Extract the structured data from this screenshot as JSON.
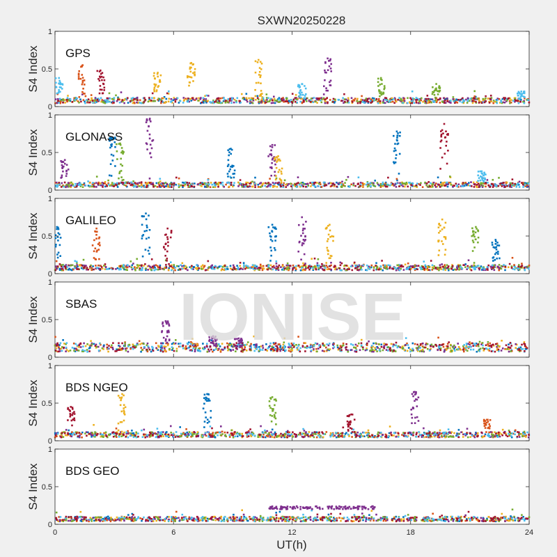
{
  "figure": {
    "title": "SXWN20250228",
    "xlabel": "UT(h)",
    "ylabel": "S4 Index",
    "watermark": "IONISE",
    "background": "#f0f0f0",
    "axes_background": "#ffffff"
  },
  "chart_data": {
    "type": "scatter",
    "title": "SXWN20250228",
    "xlabel": "UT(h)",
    "ylabel": "S4 Index",
    "xlim": [
      0,
      24
    ],
    "ylim": [
      0,
      1
    ],
    "xticks": [
      "0",
      "6",
      "12",
      "18",
      "24"
    ],
    "yticks": [
      "0",
      "0.5",
      "1"
    ],
    "grid": false,
    "series_colors": [
      "#0072BD",
      "#D95319",
      "#EDB120",
      "#7E2F8E",
      "#77AC30",
      "#4DBEEE",
      "#A2142F"
    ],
    "panels": [
      {
        "name": "GPS",
        "baseline": 0.08,
        "peaks": [
          {
            "x": 0.2,
            "y": 0.38,
            "c": 5
          },
          {
            "x": 1.4,
            "y": 0.55,
            "c": 1
          },
          {
            "x": 2.3,
            "y": 0.48,
            "c": 6
          },
          {
            "x": 5.2,
            "y": 0.45,
            "c": 2
          },
          {
            "x": 6.9,
            "y": 0.58,
            "c": 2
          },
          {
            "x": 10.3,
            "y": 0.62,
            "c": 2
          },
          {
            "x": 12.5,
            "y": 0.3,
            "c": 5
          },
          {
            "x": 13.8,
            "y": 0.64,
            "c": 3
          },
          {
            "x": 16.5,
            "y": 0.38,
            "c": 4
          },
          {
            "x": 19.3,
            "y": 0.3,
            "c": 4
          },
          {
            "x": 23.6,
            "y": 0.2,
            "c": 5
          }
        ]
      },
      {
        "name": "GLONASS",
        "baseline": 0.07,
        "peaks": [
          {
            "x": 0.5,
            "y": 0.4,
            "c": 3
          },
          {
            "x": 2.9,
            "y": 0.7,
            "c": 0
          },
          {
            "x": 3.3,
            "y": 0.62,
            "c": 4
          },
          {
            "x": 4.8,
            "y": 0.95,
            "c": 3
          },
          {
            "x": 8.9,
            "y": 0.55,
            "c": 0
          },
          {
            "x": 11.0,
            "y": 0.6,
            "c": 3
          },
          {
            "x": 11.3,
            "y": 0.45,
            "c": 2
          },
          {
            "x": 17.3,
            "y": 0.78,
            "c": 0
          },
          {
            "x": 19.7,
            "y": 0.88,
            "c": 6
          },
          {
            "x": 21.6,
            "y": 0.25,
            "c": 5
          }
        ]
      },
      {
        "name": "GALILEO",
        "baseline": 0.08,
        "peaks": [
          {
            "x": 0.1,
            "y": 0.62,
            "c": 0
          },
          {
            "x": 2.1,
            "y": 0.6,
            "c": 1
          },
          {
            "x": 4.6,
            "y": 0.8,
            "c": 0
          },
          {
            "x": 5.7,
            "y": 0.6,
            "c": 6
          },
          {
            "x": 11.0,
            "y": 0.65,
            "c": 0
          },
          {
            "x": 12.5,
            "y": 0.75,
            "c": 3
          },
          {
            "x": 13.9,
            "y": 0.65,
            "c": 2
          },
          {
            "x": 19.6,
            "y": 0.72,
            "c": 2
          },
          {
            "x": 21.3,
            "y": 0.62,
            "c": 4
          },
          {
            "x": 22.3,
            "y": 0.45,
            "c": 0
          }
        ]
      },
      {
        "name": "SBAS",
        "baseline": 0.13,
        "peaks": [
          {
            "x": 5.6,
            "y": 0.48,
            "c": 3
          },
          {
            "x": 8.0,
            "y": 0.28,
            "c": 3
          },
          {
            "x": 9.3,
            "y": 0.25,
            "c": 3
          }
        ]
      },
      {
        "name": "BDS NGEO",
        "baseline": 0.08,
        "peaks": [
          {
            "x": 0.8,
            "y": 0.45,
            "c": 6
          },
          {
            "x": 3.4,
            "y": 0.62,
            "c": 2
          },
          {
            "x": 7.7,
            "y": 0.62,
            "c": 0
          },
          {
            "x": 11.0,
            "y": 0.58,
            "c": 4
          },
          {
            "x": 15.0,
            "y": 0.35,
            "c": 6
          },
          {
            "x": 18.2,
            "y": 0.65,
            "c": 3
          },
          {
            "x": 21.9,
            "y": 0.28,
            "c": 1
          }
        ]
      },
      {
        "name": "BDS GEO",
        "baseline": 0.07,
        "peaks": [],
        "band": {
          "x0": 10.8,
          "x1": 16.2,
          "y": 0.22,
          "c": 3
        }
      }
    ]
  }
}
